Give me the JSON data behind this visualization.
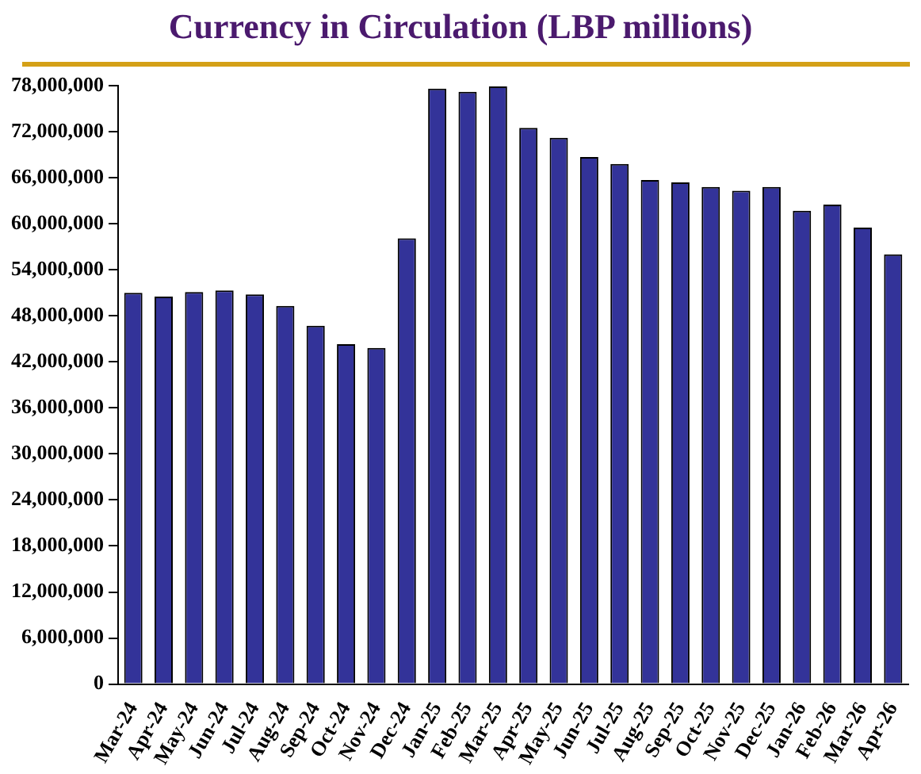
{
  "chart_data": {
    "type": "bar",
    "title": "Currency in Circulation (LBP millions)",
    "categories": [
      "Mar-24",
      "Apr-24",
      "May-24",
      "Jun-24",
      "Jul-24",
      "Aug-24",
      "Sep-24",
      "Oct-24",
      "Nov-24",
      "Dec-24",
      "Jan-25",
      "Feb-25",
      "Mar-25",
      "Apr-25",
      "May-25",
      "Jun-25",
      "Jul-25",
      "Aug-25",
      "Sep-25",
      "Oct-25",
      "Nov-25",
      "Dec-25",
      "Jan-26",
      "Feb-26",
      "Mar-26",
      "Apr-26"
    ],
    "values": [
      51000000,
      50500000,
      51100000,
      51300000,
      50800000,
      49300000,
      46700000,
      44300000,
      43800000,
      58100000,
      77600000,
      77200000,
      77900000,
      72500000,
      71200000,
      68700000,
      67800000,
      65700000,
      65400000,
      64800000,
      64300000,
      64800000,
      61700000,
      62500000,
      59500000,
      56000000
    ],
    "color": "#333399",
    "ylim": [
      0,
      78000000
    ],
    "yticks": [
      0,
      {
        "value": 6000000,
        "label": "6,000,000"
      },
      {
        "value": 12000000,
        "label": "12,000,000"
      },
      {
        "value": 18000000,
        "label": "18,000,000"
      },
      {
        "value": 24000000,
        "label": "24,000,000"
      },
      {
        "value": 30000000,
        "label": "30,000,000"
      },
      {
        "value": 36000000,
        "label": "36,000,000"
      },
      {
        "value": 42000000,
        "label": "42,000,000"
      },
      {
        "value": 48000000,
        "label": "48,000,000"
      },
      {
        "value": 54000000,
        "label": "54,000,000"
      },
      {
        "value": 60000000,
        "label": "60,000,000"
      },
      {
        "value": 66000000,
        "label": "66,000,000"
      },
      {
        "value": 72000000,
        "label": "72,000,000"
      },
      {
        "value": 78000000,
        "label": "78,000,000"
      }
    ],
    "grid": false,
    "legend": false
  }
}
